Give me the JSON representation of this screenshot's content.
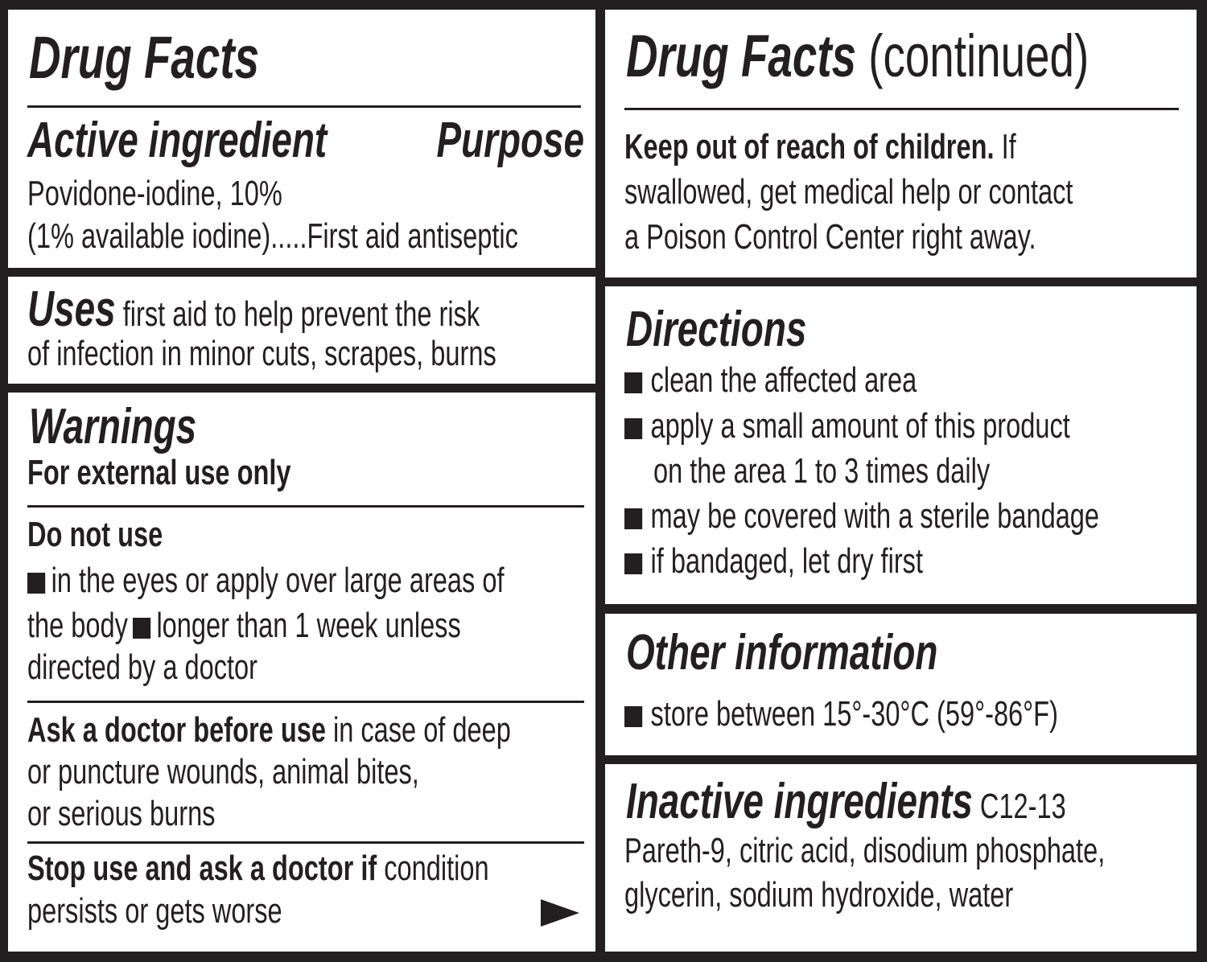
{
  "left": {
    "title": "Drug Facts",
    "active_heading": "Active ingredient",
    "purpose_heading": "Purpose",
    "active_line1": "Povidone-iodine, 10%",
    "active_line2": "(1% available iodine).....First aid antiseptic",
    "uses_heading": "Uses",
    "uses_line1": "first aid to help prevent the risk",
    "uses_line2": "of infection in minor cuts, scrapes, burns",
    "warnings_heading": "Warnings",
    "external": "For external use only",
    "do_not_use": "Do not use",
    "dnu_line1": "in the eyes or apply over large areas of",
    "dnu_line2a": "the body",
    "dnu_line2b": "longer than 1 week unless",
    "dnu_line3": "directed by a doctor",
    "ask_bold": "Ask a doctor before use",
    "ask_line1": " in case of deep",
    "ask_line2": "or puncture wounds, animal bites,",
    "ask_line3": "or serious burns",
    "stop_bold": "Stop use and ask a doctor if",
    "stop_line1": " condition",
    "stop_line2": "persists or gets worse",
    "continue_icon": "right-triangle-arrow"
  },
  "right": {
    "title": "Drug Facts",
    "title_suffix": " (continued)",
    "keep_bold": "Keep out of reach of children.",
    "keep_line1": " If",
    "keep_line2": "swallowed, get medical help or contact",
    "keep_line3": "a Poison Control Center right away.",
    "directions_heading": "Directions",
    "directions": [
      "clean the affected area",
      "apply a small amount of this product",
      "on the area 1 to 3 times daily",
      "may be covered with a sterile bandage",
      "if bandaged, let dry first"
    ],
    "other_heading": "Other information",
    "other_item": "store between 15°-30°C (59°-86°F)",
    "inactive_heading": "Inactive ingredients",
    "inactive_line1": " C12-13",
    "inactive_line2": "Pareth-9, citric acid, disodium phosphate,",
    "inactive_line3": "glycerin, sodium hydroxide, water"
  },
  "colors": {
    "ink": "#231f20",
    "background": "#ffffff"
  }
}
